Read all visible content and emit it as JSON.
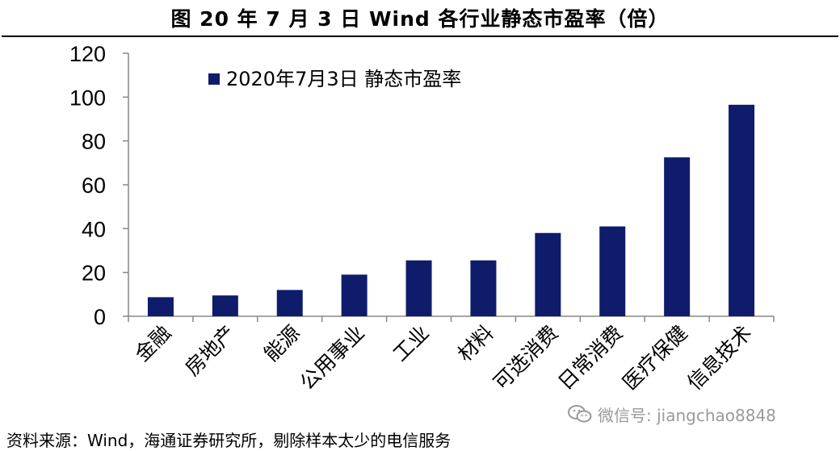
{
  "figure": {
    "title": "图   20 年 7 月 3 日 Wind 各行业静态市盈率（倍）",
    "source": "资料来源：Wind，海通证券研究所，剔除样本太少的电信服务"
  },
  "watermark": {
    "text": "微信号: jiangchao8848",
    "icon": "wechat-icon"
  },
  "colors": {
    "bar": "#0f1c6b",
    "axis": "#888888",
    "text": "#000000"
  },
  "chart_data": {
    "type": "bar",
    "categories": [
      "金融",
      "房地产",
      "能源",
      "公用事业",
      "工业",
      "材料",
      "可选消费",
      "日常消费",
      "医疗保健",
      "信息技术"
    ],
    "series": [
      {
        "name": "2020年7月3日 静态市盈率",
        "values": [
          8.7,
          9.5,
          12,
          19,
          25.5,
          25.5,
          38,
          41,
          72.5,
          96.5
        ]
      }
    ],
    "ylim": [
      0,
      120
    ],
    "yticks": [
      0,
      20,
      40,
      60,
      80,
      100,
      120
    ],
    "legend_position": "top-left",
    "grid": false
  }
}
